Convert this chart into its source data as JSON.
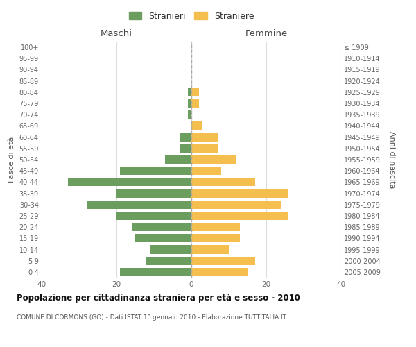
{
  "age_groups": [
    "0-4",
    "5-9",
    "10-14",
    "15-19",
    "20-24",
    "25-29",
    "30-34",
    "35-39",
    "40-44",
    "45-49",
    "50-54",
    "55-59",
    "60-64",
    "65-69",
    "70-74",
    "75-79",
    "80-84",
    "85-89",
    "90-94",
    "95-99",
    "100+"
  ],
  "birth_years": [
    "2005-2009",
    "2000-2004",
    "1995-1999",
    "1990-1994",
    "1985-1989",
    "1980-1984",
    "1975-1979",
    "1970-1974",
    "1965-1969",
    "1960-1964",
    "1955-1959",
    "1950-1954",
    "1945-1949",
    "1940-1944",
    "1935-1939",
    "1930-1934",
    "1925-1929",
    "1920-1924",
    "1915-1919",
    "1910-1914",
    "≤ 1909"
  ],
  "maschi": [
    19,
    12,
    11,
    15,
    16,
    20,
    28,
    20,
    33,
    19,
    7,
    3,
    3,
    0,
    1,
    1,
    1,
    0,
    0,
    0,
    0
  ],
  "femmine": [
    15,
    17,
    10,
    13,
    13,
    26,
    24,
    26,
    17,
    8,
    12,
    7,
    7,
    3,
    0,
    2,
    2,
    0,
    0,
    0,
    0
  ],
  "color_maschi": "#6b9e5e",
  "color_femmine": "#f5bf4f",
  "title": "Popolazione per cittadinanza straniera per età e sesso - 2010",
  "subtitle": "COMUNE DI CORMONS (GO) - Dati ISTAT 1° gennaio 2010 - Elaborazione TUTTITALIA.IT",
  "xlabel_left": "Maschi",
  "xlabel_right": "Femmine",
  "ylabel_left": "Fasce di età",
  "ylabel_right": "Anni di nascita",
  "legend_maschi": "Stranieri",
  "legend_femmine": "Straniere",
  "xlim": 40,
  "grid_color": "#dddddd",
  "dashed_line_color": "#aaaaaa"
}
